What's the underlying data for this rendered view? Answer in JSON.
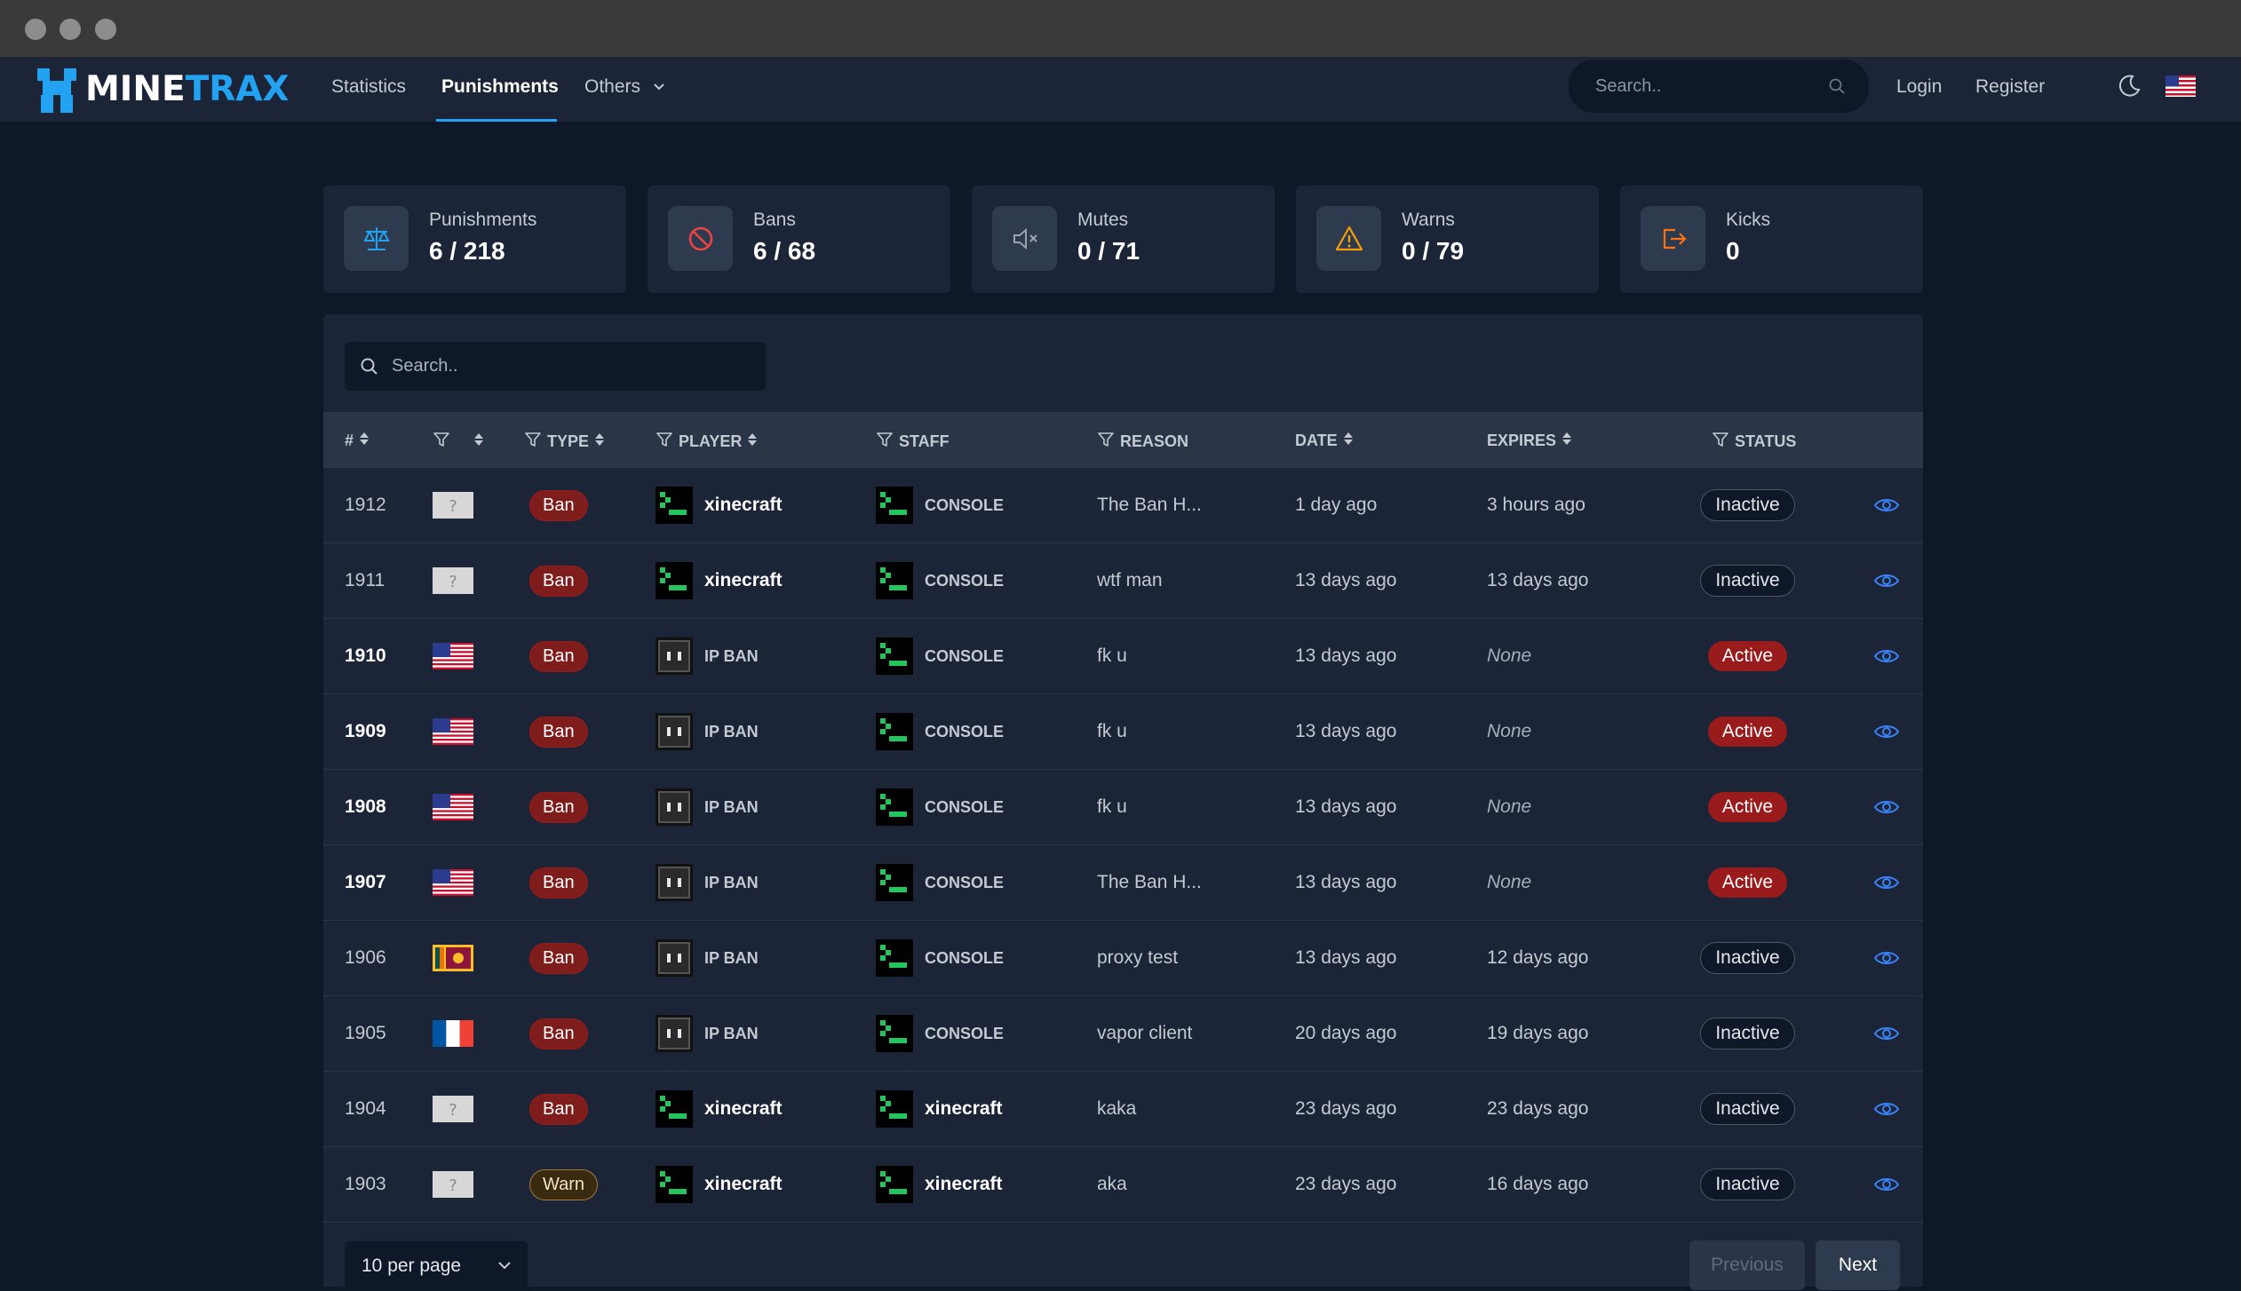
{
  "brand": {
    "part1": "MINE",
    "part2": "TRAX"
  },
  "nav": {
    "links": [
      {
        "label": "Statistics"
      },
      {
        "label": "Punishments"
      },
      {
        "label": "Others"
      }
    ],
    "search_placeholder": "Search..",
    "login": "Login",
    "register": "Register"
  },
  "stats": [
    {
      "label": "Punishments",
      "value": "6 / 218",
      "icon": "scale-icon"
    },
    {
      "label": "Bans",
      "value": "6 / 68",
      "icon": "ban-icon"
    },
    {
      "label": "Mutes",
      "value": "0 / 71",
      "icon": "mute-icon"
    },
    {
      "label": "Warns",
      "value": "0 / 79",
      "icon": "warning-icon"
    },
    {
      "label": "Kicks",
      "value": "0",
      "icon": "kick-icon"
    }
  ],
  "table": {
    "search_placeholder": "Search..",
    "headers": {
      "id": "#",
      "type": "TYPE",
      "player": "PLAYER",
      "staff": "STAFF",
      "reason": "REASON",
      "date": "DATE",
      "expires": "EXPIRES",
      "status": "STATUS"
    },
    "rows": [
      {
        "id": "1912",
        "country": "unknown",
        "type": "Ban",
        "player": "xinecraft",
        "player_avatar": "console",
        "staff": "CONSOLE",
        "staff_avatar": "console",
        "reason": "The Ban H...",
        "date": "1 day ago",
        "expires": "3 hours ago",
        "status": "Inactive"
      },
      {
        "id": "1911",
        "country": "unknown",
        "type": "Ban",
        "player": "xinecraft",
        "player_avatar": "console",
        "staff": "CONSOLE",
        "staff_avatar": "console",
        "reason": "wtf man",
        "date": "13 days ago",
        "expires": "13 days ago",
        "status": "Inactive"
      },
      {
        "id": "1910",
        "country": "us",
        "type": "Ban",
        "player": "IP BAN",
        "player_avatar": "ipban",
        "staff": "CONSOLE",
        "staff_avatar": "console",
        "reason": "fk u",
        "date": "13 days ago",
        "expires": "None",
        "status": "Active"
      },
      {
        "id": "1909",
        "country": "us",
        "type": "Ban",
        "player": "IP BAN",
        "player_avatar": "ipban",
        "staff": "CONSOLE",
        "staff_avatar": "console",
        "reason": "fk u",
        "date": "13 days ago",
        "expires": "None",
        "status": "Active"
      },
      {
        "id": "1908",
        "country": "us",
        "type": "Ban",
        "player": "IP BAN",
        "player_avatar": "ipban",
        "staff": "CONSOLE",
        "staff_avatar": "console",
        "reason": "fk u",
        "date": "13 days ago",
        "expires": "None",
        "status": "Active"
      },
      {
        "id": "1907",
        "country": "us",
        "type": "Ban",
        "player": "IP BAN",
        "player_avatar": "ipban",
        "staff": "CONSOLE",
        "staff_avatar": "console",
        "reason": "The Ban H...",
        "date": "13 days ago",
        "expires": "None",
        "status": "Active"
      },
      {
        "id": "1906",
        "country": "lk",
        "type": "Ban",
        "player": "IP BAN",
        "player_avatar": "ipban",
        "staff": "CONSOLE",
        "staff_avatar": "console",
        "reason": "proxy test",
        "date": "13 days ago",
        "expires": "12 days ago",
        "status": "Inactive"
      },
      {
        "id": "1905",
        "country": "fr",
        "type": "Ban",
        "player": "IP BAN",
        "player_avatar": "ipban",
        "staff": "CONSOLE",
        "staff_avatar": "console",
        "reason": "vapor client",
        "date": "20 days ago",
        "expires": "19 days ago",
        "status": "Inactive"
      },
      {
        "id": "1904",
        "country": "unknown",
        "type": "Ban",
        "player": "xinecraft",
        "player_avatar": "console",
        "staff": "xinecraft",
        "staff_avatar": "console",
        "reason": "kaka",
        "date": "23 days ago",
        "expires": "23 days ago",
        "status": "Inactive"
      },
      {
        "id": "1903",
        "country": "unknown",
        "type": "Warn",
        "player": "xinecraft",
        "player_avatar": "console",
        "staff": "xinecraft",
        "staff_avatar": "console",
        "reason": "aka",
        "date": "23 days ago",
        "expires": "16 days ago",
        "status": "Inactive"
      }
    ],
    "per_page": "10 per page",
    "previous": "Previous",
    "next": "Next"
  },
  "colors": {
    "accent": "#22a2f1",
    "danger": "#991b1b",
    "bg": "#0f1829",
    "panel": "#1b2537"
  }
}
